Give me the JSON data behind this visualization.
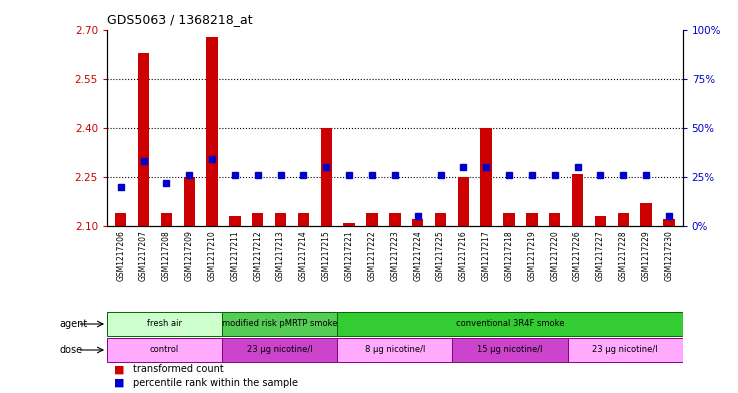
{
  "title": "GDS5063 / 1368218_at",
  "samples": [
    "GSM1217206",
    "GSM1217207",
    "GSM1217208",
    "GSM1217209",
    "GSM1217210",
    "GSM1217211",
    "GSM1217212",
    "GSM1217213",
    "GSM1217214",
    "GSM1217215",
    "GSM1217221",
    "GSM1217222",
    "GSM1217223",
    "GSM1217224",
    "GSM1217225",
    "GSM1217216",
    "GSM1217217",
    "GSM1217218",
    "GSM1217219",
    "GSM1217220",
    "GSM1217226",
    "GSM1217227",
    "GSM1217228",
    "GSM1217229",
    "GSM1217230"
  ],
  "transformed_count": [
    2.14,
    2.63,
    2.14,
    2.25,
    2.68,
    2.13,
    2.14,
    2.14,
    2.14,
    2.4,
    2.11,
    2.14,
    2.14,
    2.12,
    2.14,
    2.25,
    2.4,
    2.14,
    2.14,
    2.14,
    2.26,
    2.13,
    2.14,
    2.17,
    2.12
  ],
  "percentile_rank": [
    20,
    33,
    22,
    26,
    34,
    26,
    26,
    26,
    26,
    30,
    26,
    26,
    26,
    5,
    26,
    30,
    30,
    26,
    26,
    26,
    30,
    26,
    26,
    26,
    5
  ],
  "ylim_left": [
    2.1,
    2.7
  ],
  "ylim_right": [
    0,
    100
  ],
  "yticks_left": [
    2.1,
    2.25,
    2.4,
    2.55,
    2.7
  ],
  "yticks_right": [
    0,
    25,
    50,
    75,
    100
  ],
  "bar_color": "#cc0000",
  "dot_color": "#0000cc",
  "agent_groups": [
    {
      "label": "fresh air",
      "start": 0,
      "end": 4,
      "facecolor": "#ccffcc",
      "edgecolor": "#006600"
    },
    {
      "label": "modified risk pMRTP smoke",
      "start": 5,
      "end": 9,
      "facecolor": "#55cc55",
      "edgecolor": "#006600"
    },
    {
      "label": "conventional 3R4F smoke",
      "start": 10,
      "end": 24,
      "facecolor": "#33cc33",
      "edgecolor": "#006600"
    }
  ],
  "dose_groups": [
    {
      "label": "control",
      "start": 0,
      "end": 4,
      "facecolor": "#ffaaff",
      "edgecolor": "#880088"
    },
    {
      "label": "23 μg nicotine/l",
      "start": 5,
      "end": 9,
      "facecolor": "#cc44cc",
      "edgecolor": "#880088"
    },
    {
      "label": "8 μg nicotine/l",
      "start": 10,
      "end": 14,
      "facecolor": "#ffaaff",
      "edgecolor": "#880088"
    },
    {
      "label": "15 μg nicotine/l",
      "start": 15,
      "end": 19,
      "facecolor": "#cc44cc",
      "edgecolor": "#880088"
    },
    {
      "label": "23 μg nicotine/l",
      "start": 20,
      "end": 24,
      "facecolor": "#ffaaff",
      "edgecolor": "#880088"
    }
  ],
  "legend_items": [
    {
      "label": "transformed count",
      "color": "#cc0000"
    },
    {
      "label": "percentile rank within the sample",
      "color": "#0000cc"
    }
  ],
  "bar_width": 0.5,
  "tick_color_left": "#cc0000",
  "tick_color_right": "#0000cc",
  "grid_linestyle": ":",
  "grid_linewidth": 0.8,
  "grid_color": "black"
}
